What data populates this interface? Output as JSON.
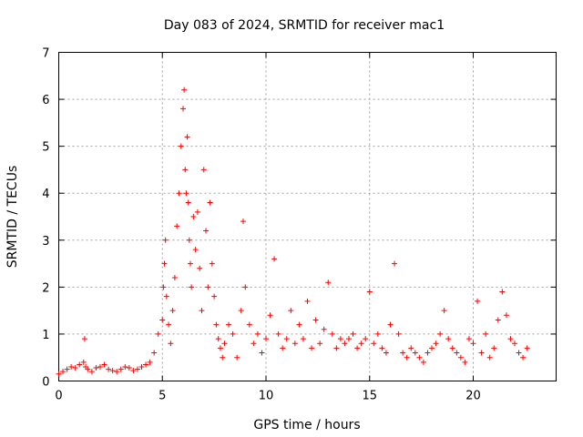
{
  "chart_data": {
    "type": "scatter",
    "title": "Day 083 of 2024, SRMTID for receiver mac1",
    "xlabel": "GPS time / hours",
    "ylabel": "SRMTID / TECUs",
    "xlim": [
      0,
      24
    ],
    "ylim": [
      0,
      7
    ],
    "xticks": [
      0,
      5,
      10,
      15,
      20
    ],
    "yticks": [
      0,
      1,
      2,
      3,
      4,
      5,
      6,
      7
    ],
    "grid": true,
    "marker": "+",
    "marker_color": "#ff0000",
    "series": [
      {
        "name": "SRMTID",
        "x": [
          0.0,
          0.2,
          0.4,
          0.6,
          0.8,
          1.0,
          1.2,
          1.25,
          1.3,
          1.4,
          1.6,
          1.8,
          2.0,
          2.2,
          2.4,
          2.6,
          2.8,
          3.0,
          3.2,
          3.4,
          3.6,
          3.8,
          4.0,
          4.2,
          4.4,
          4.6,
          4.8,
          5.0,
          5.05,
          5.1,
          5.15,
          5.2,
          5.3,
          5.4,
          5.5,
          5.6,
          5.7,
          5.8,
          5.9,
          6.0,
          6.05,
          6.1,
          6.15,
          6.2,
          6.25,
          6.3,
          6.35,
          6.4,
          6.5,
          6.6,
          6.7,
          6.8,
          6.9,
          7.0,
          7.1,
          7.2,
          7.3,
          7.4,
          7.5,
          7.6,
          7.7,
          7.8,
          7.9,
          8.0,
          8.2,
          8.4,
          8.6,
          8.8,
          8.9,
          9.0,
          9.2,
          9.4,
          9.6,
          9.8,
          10.0,
          10.2,
          10.4,
          10.6,
          10.8,
          11.0,
          11.2,
          11.4,
          11.6,
          11.8,
          12.0,
          12.2,
          12.4,
          12.6,
          12.8,
          13.0,
          13.2,
          13.4,
          13.6,
          13.8,
          14.0,
          14.2,
          14.4,
          14.6,
          14.8,
          15.0,
          15.2,
          15.4,
          15.6,
          15.8,
          16.0,
          16.2,
          16.4,
          16.6,
          16.8,
          17.0,
          17.2,
          17.4,
          17.6,
          17.8,
          18.0,
          18.2,
          18.4,
          18.6,
          18.8,
          19.0,
          19.2,
          19.4,
          19.6,
          19.8,
          20.0,
          20.2,
          20.4,
          20.6,
          20.8,
          21.0,
          21.2,
          21.4,
          21.6,
          21.8,
          22.0,
          22.2,
          22.4,
          22.6
        ],
        "y": [
          0.15,
          0.2,
          0.25,
          0.3,
          0.28,
          0.35,
          0.4,
          0.9,
          0.3,
          0.25,
          0.2,
          0.28,
          0.3,
          0.35,
          0.25,
          0.22,
          0.2,
          0.25,
          0.3,
          0.28,
          0.22,
          0.25,
          0.3,
          0.35,
          0.4,
          0.6,
          1.0,
          1.3,
          2.0,
          2.5,
          3.0,
          1.8,
          1.2,
          0.8,
          1.5,
          2.2,
          3.3,
          4.0,
          5.0,
          5.8,
          6.2,
          4.5,
          4.0,
          5.2,
          3.8,
          3.0,
          2.5,
          2.0,
          3.5,
          2.8,
          3.6,
          2.4,
          1.5,
          4.5,
          3.2,
          2.0,
          3.8,
          2.5,
          1.8,
          1.2,
          0.9,
          0.7,
          0.5,
          0.8,
          1.2,
          1.0,
          0.5,
          1.5,
          3.4,
          2.0,
          1.2,
          0.8,
          1.0,
          0.6,
          0.9,
          1.4,
          2.6,
          1.0,
          0.7,
          0.9,
          1.5,
          0.8,
          1.2,
          0.9,
          1.7,
          0.7,
          1.3,
          0.8,
          1.1,
          2.1,
          1.0,
          0.7,
          0.9,
          0.8,
          0.9,
          1.0,
          0.7,
          0.8,
          0.9,
          1.9,
          0.8,
          1.0,
          0.7,
          0.6,
          1.2,
          2.5,
          1.0,
          0.6,
          0.5,
          0.7,
          0.6,
          0.5,
          0.4,
          0.6,
          0.7,
          0.8,
          1.0,
          1.5,
          0.9,
          0.7,
          0.6,
          0.5,
          0.4,
          0.9,
          0.8,
          1.7,
          0.6,
          1.0,
          0.5,
          0.7,
          1.3,
          1.9,
          1.4,
          0.9,
          0.8,
          0.6,
          0.5,
          0.7
        ]
      }
    ]
  }
}
